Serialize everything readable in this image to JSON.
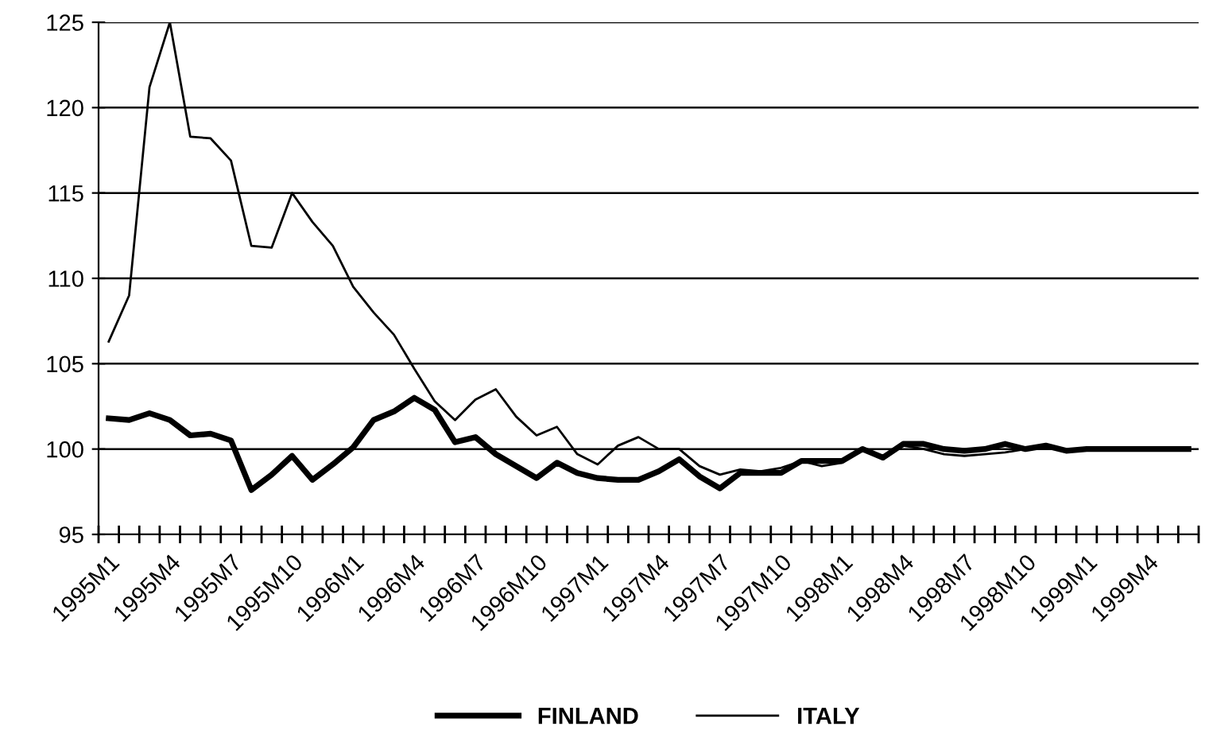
{
  "chart_data": {
    "type": "line",
    "categories": [
      "1995M1",
      null,
      null,
      "1995M4",
      null,
      null,
      "1995M7",
      null,
      null,
      "1995M10",
      null,
      null,
      "1996M1",
      null,
      null,
      "1996M4",
      null,
      null,
      "1996M7",
      null,
      null,
      "1996M10",
      null,
      null,
      "1997M1",
      null,
      null,
      "1997M4",
      null,
      null,
      "1997M7",
      null,
      null,
      "1997M10",
      null,
      null,
      "1998M1",
      null,
      null,
      "1998M4",
      null,
      null,
      "1998M7",
      null,
      null,
      "1998M10",
      null,
      null,
      "1999M1",
      null,
      null,
      "1999M4",
      null,
      null
    ],
    "series": [
      {
        "name": "FINLAND",
        "color": "#000000",
        "values": [
          101.8,
          101.7,
          102.1,
          101.7,
          100.8,
          100.9,
          100.5,
          97.6,
          98.5,
          99.6,
          98.2,
          99.1,
          100.1,
          101.7,
          102.2,
          103.0,
          102.3,
          100.4,
          100.7,
          99.7,
          99.0,
          98.3,
          99.2,
          98.6,
          98.3,
          98.2,
          98.2,
          98.7,
          99.4,
          98.4,
          97.7,
          98.6,
          98.6,
          98.6,
          99.3,
          99.3,
          99.3,
          100.0,
          99.5,
          100.3,
          100.3,
          100.0,
          99.9,
          100.0,
          100.3,
          100.0,
          100.2,
          99.9,
          100.0,
          100.0,
          100.0,
          100.0,
          100.0,
          100.0
        ]
      },
      {
        "name": "ITALY",
        "color": "#000000",
        "values": [
          106.3,
          109.0,
          121.2,
          125.0,
          118.3,
          118.2,
          116.9,
          111.9,
          111.8,
          115.0,
          113.3,
          111.9,
          109.5,
          108.0,
          106.7,
          104.7,
          102.8,
          101.7,
          102.9,
          103.5,
          101.9,
          100.8,
          101.3,
          99.7,
          99.1,
          100.2,
          100.7,
          100.0,
          100.0,
          99.0,
          98.5,
          98.8,
          98.7,
          98.9,
          99.3,
          99.0,
          99.2,
          100.0,
          99.4,
          100.2,
          100.0,
          99.7,
          99.6,
          99.7,
          99.8,
          100.0,
          100.1,
          99.9,
          100.0,
          100.0,
          100.0,
          100.0,
          100.0,
          100.0
        ]
      }
    ],
    "ylim": [
      95,
      125
    ],
    "yticks": [
      95,
      100,
      105,
      110,
      115,
      120,
      125
    ],
    "grid": "y",
    "legend": "bottom",
    "marker": "none",
    "line_style": "solid"
  }
}
